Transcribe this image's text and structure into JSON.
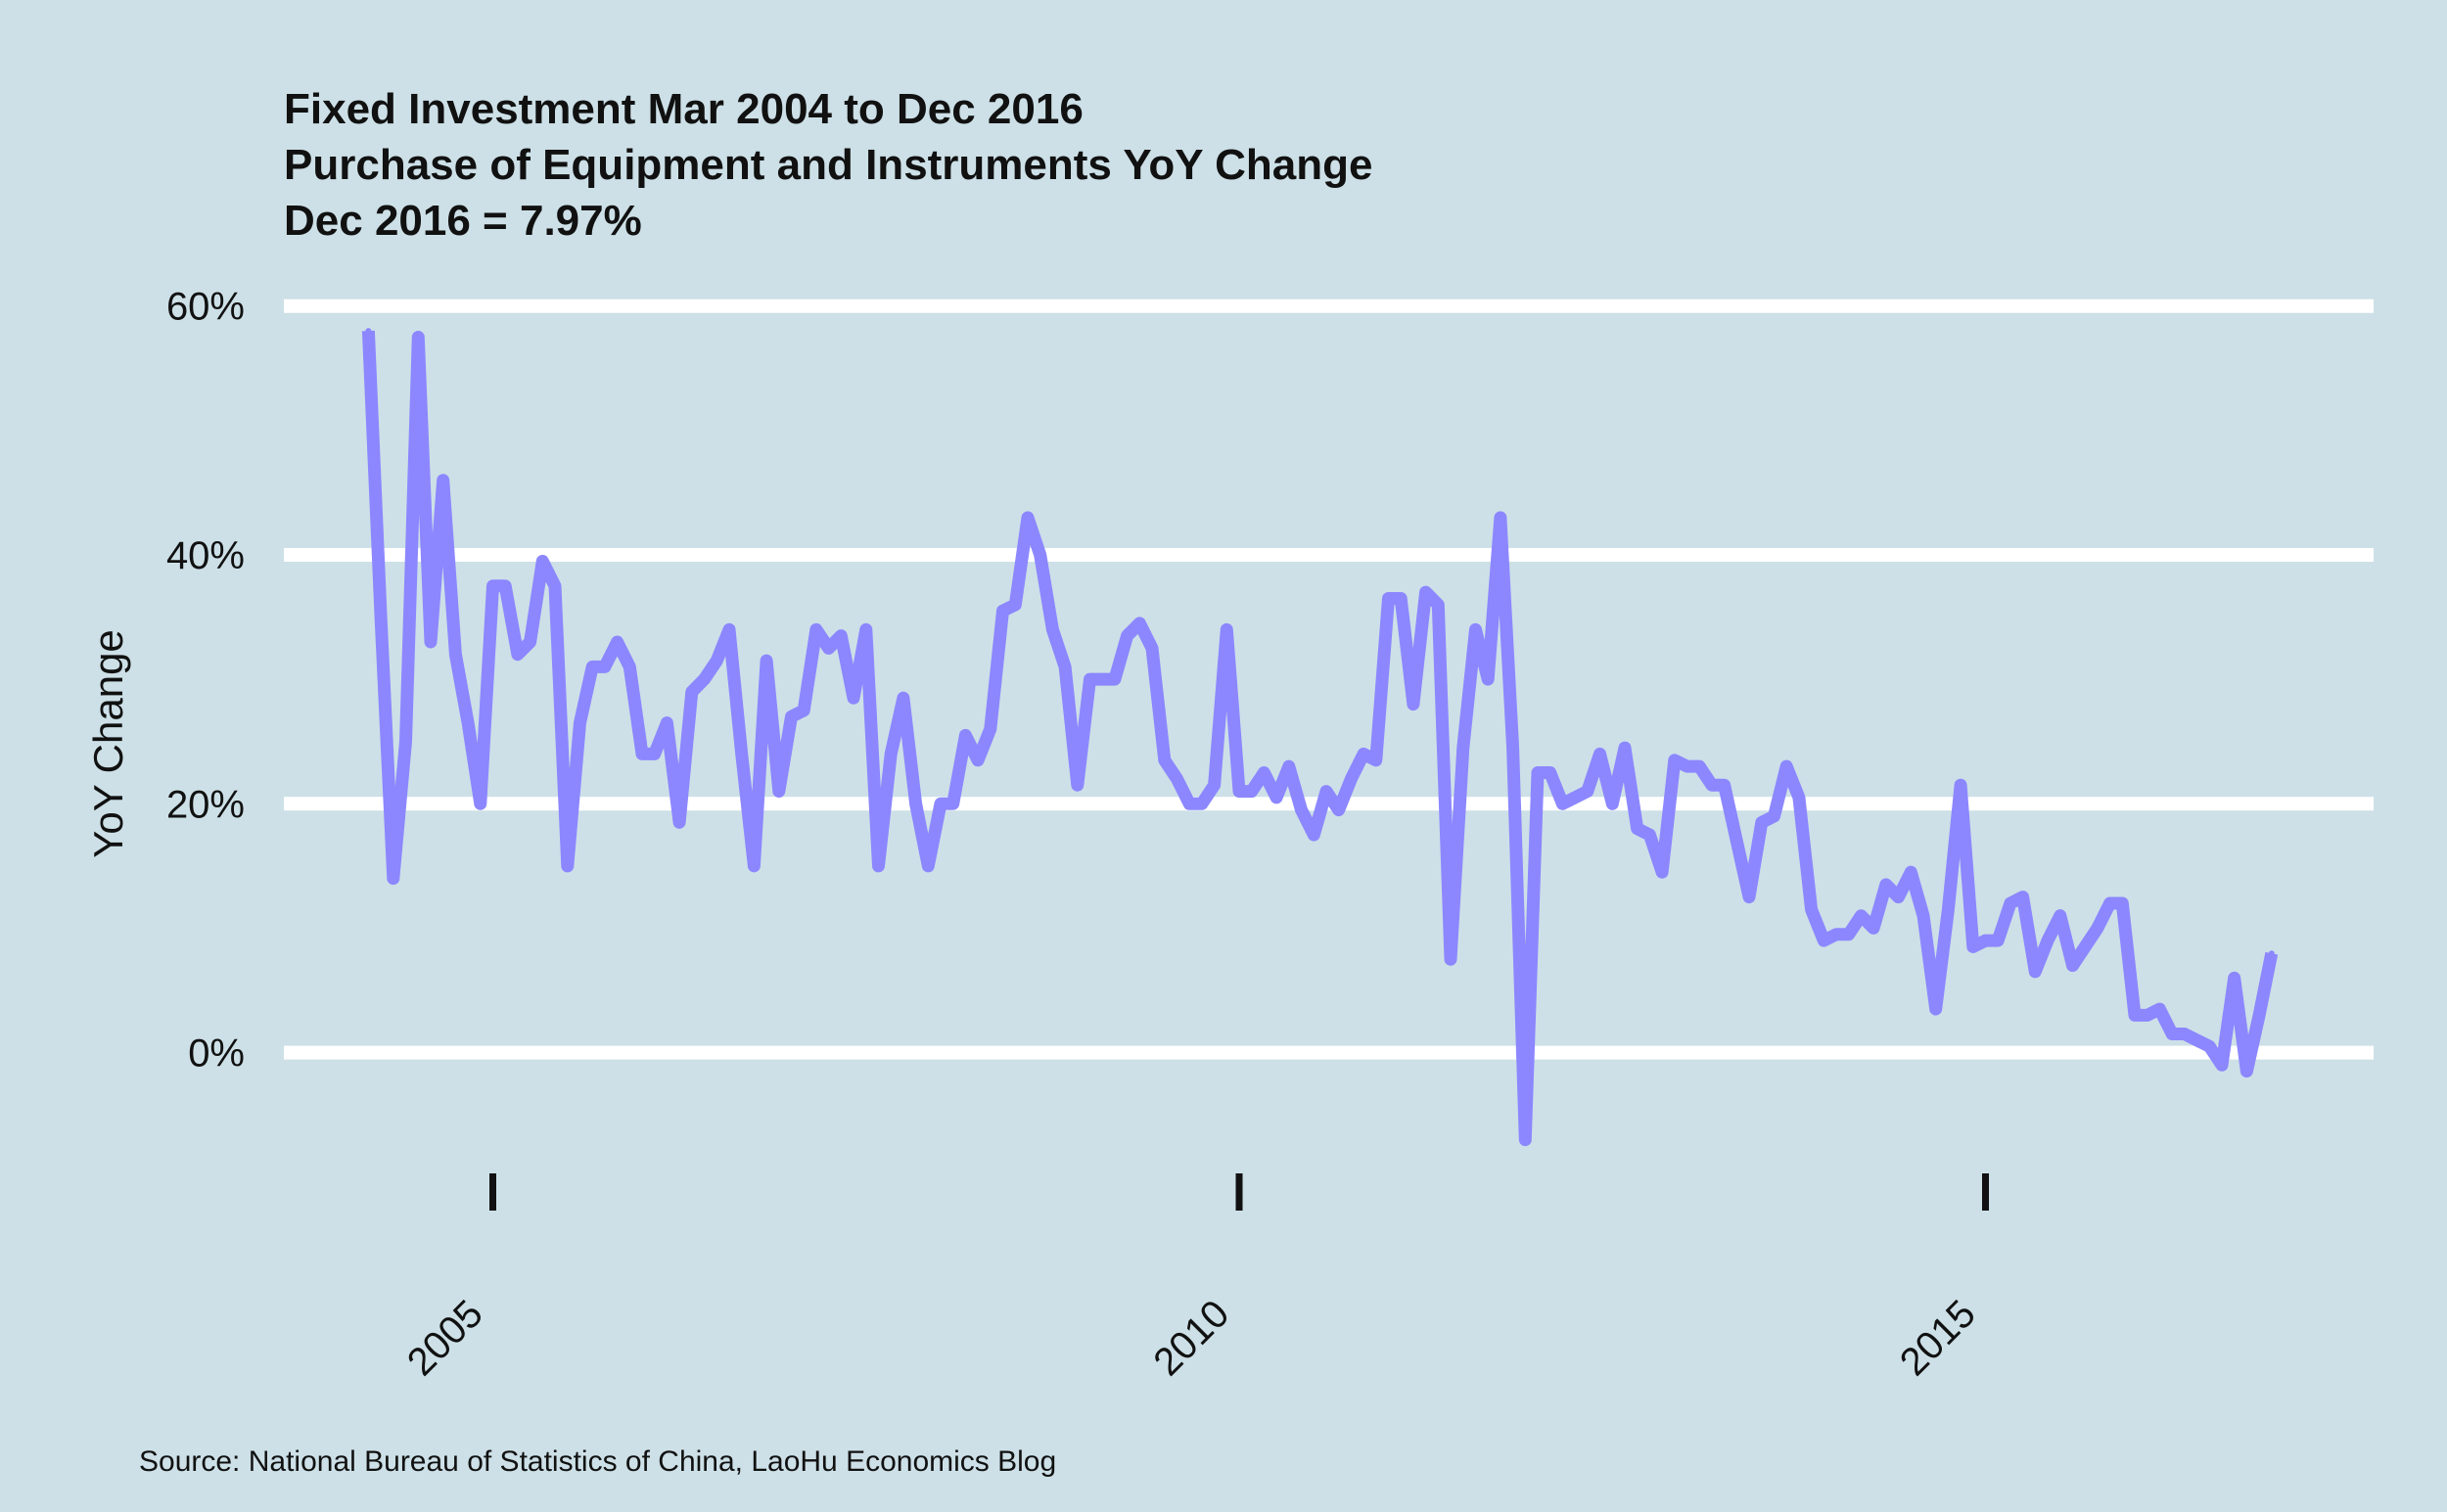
{
  "chart_data": {
    "type": "line",
    "title": [
      "Fixed Investment Mar 2004 to Dec 2016",
      "Purchase of Equipment and Instruments YoY Change",
      "Dec 2016 = 7.97%"
    ],
    "xlabel": "",
    "ylabel": "YoY Change",
    "xlim": [
      2003.6,
      2017.6
    ],
    "ylim": [
      -9,
      61
    ],
    "x_ticks": [
      2005,
      2010,
      2015
    ],
    "x_tick_labels": [
      "2005",
      "2010",
      "2015"
    ],
    "y_ticks": [
      0,
      20,
      40,
      60
    ],
    "y_tick_labels": [
      "0%",
      "20%",
      "40%",
      "60%"
    ],
    "grid": "horizontal",
    "line_color": "#8c87ff",
    "background_color": "#cde0e7",
    "source": "Source: National Bureau of Statistics of China, LaoHu Economics Blog",
    "series": [
      {
        "name": "",
        "points": [
          [
            "2004-03",
            58
          ],
          [
            "2004-04",
            35
          ],
          [
            "2004-05",
            14
          ],
          [
            "2004-06",
            25
          ],
          [
            "2004-07",
            57.5
          ],
          [
            "2004-08",
            33
          ],
          [
            "2004-09",
            46
          ],
          [
            "2004-10",
            32
          ],
          [
            "2004-11",
            26.5
          ],
          [
            "2004-12",
            20
          ],
          [
            "2005-01",
            37.5
          ],
          [
            "2005-02",
            37.5
          ],
          [
            "2005-03",
            32
          ],
          [
            "2005-04",
            33
          ],
          [
            "2005-05",
            39.5
          ],
          [
            "2005-06",
            37.5
          ],
          [
            "2005-07",
            15
          ],
          [
            "2005-08",
            26.5
          ],
          [
            "2005-09",
            31
          ],
          [
            "2005-10",
            31
          ],
          [
            "2005-11",
            33
          ],
          [
            "2005-12",
            31
          ],
          [
            "2006-01",
            24
          ],
          [
            "2006-02",
            24
          ],
          [
            "2006-03",
            26.5
          ],
          [
            "2006-04",
            18.5
          ],
          [
            "2006-05",
            29
          ],
          [
            "2006-06",
            30
          ],
          [
            "2006-07",
            31.5
          ],
          [
            "2006-08",
            34
          ],
          [
            "2006-09",
            24
          ],
          [
            "2006-10",
            15
          ],
          [
            "2006-11",
            31.5
          ],
          [
            "2006-12",
            21
          ],
          [
            "2007-01",
            27
          ],
          [
            "2007-02",
            27.5
          ],
          [
            "2007-03",
            34
          ],
          [
            "2007-04",
            32.5
          ],
          [
            "2007-05",
            33.5
          ],
          [
            "2007-06",
            28.5
          ],
          [
            "2007-07",
            34
          ],
          [
            "2007-08",
            15
          ],
          [
            "2007-09",
            24
          ],
          [
            "2007-10",
            28.5
          ],
          [
            "2007-11",
            20
          ],
          [
            "2007-12",
            15
          ],
          [
            "2008-01",
            20
          ],
          [
            "2008-02",
            20
          ],
          [
            "2008-03",
            25.5
          ],
          [
            "2008-04",
            23.5
          ],
          [
            "2008-05",
            26
          ],
          [
            "2008-06",
            35.5
          ],
          [
            "2008-07",
            36
          ],
          [
            "2008-08",
            43
          ],
          [
            "2008-09",
            40
          ],
          [
            "2008-10",
            34
          ],
          [
            "2008-11",
            31
          ],
          [
            "2008-12",
            21.5
          ],
          [
            "2009-01",
            30
          ],
          [
            "2009-02",
            30
          ],
          [
            "2009-03",
            30
          ],
          [
            "2009-04",
            33.5
          ],
          [
            "2009-05",
            34.5
          ],
          [
            "2009-06",
            32.5
          ],
          [
            "2009-07",
            23.5
          ],
          [
            "2009-08",
            22
          ],
          [
            "2009-09",
            20
          ],
          [
            "2009-10",
            20
          ],
          [
            "2009-11",
            21.5
          ],
          [
            "2009-12",
            34
          ],
          [
            "2010-01",
            21
          ],
          [
            "2010-02",
            21
          ],
          [
            "2010-03",
            22.5
          ],
          [
            "2010-04",
            20.5
          ],
          [
            "2010-05",
            23
          ],
          [
            "2010-06",
            19.5
          ],
          [
            "2010-07",
            17.5
          ],
          [
            "2010-08",
            21
          ],
          [
            "2010-09",
            19.5
          ],
          [
            "2010-10",
            22
          ],
          [
            "2010-11",
            24
          ],
          [
            "2010-12",
            23.5
          ],
          [
            "2011-01",
            36.5
          ],
          [
            "2011-02",
            36.5
          ],
          [
            "2011-03",
            28
          ],
          [
            "2011-04",
            37
          ],
          [
            "2011-05",
            36
          ],
          [
            "2011-06",
            7.5
          ],
          [
            "2011-07",
            24.5
          ],
          [
            "2011-08",
            34
          ],
          [
            "2011-09",
            30
          ],
          [
            "2011-10",
            43
          ],
          [
            "2011-11",
            24.5
          ],
          [
            "2011-12",
            -7
          ],
          [
            "2012-01",
            22.5
          ],
          [
            "2012-02",
            22.5
          ],
          [
            "2012-03",
            20
          ],
          [
            "2012-04",
            20.5
          ],
          [
            "2012-05",
            21
          ],
          [
            "2012-06",
            24
          ],
          [
            "2012-07",
            20
          ],
          [
            "2012-08",
            24.5
          ],
          [
            "2012-09",
            18
          ],
          [
            "2012-10",
            17.5
          ],
          [
            "2012-11",
            14.5
          ],
          [
            "2012-12",
            23.5
          ],
          [
            "2013-01",
            23
          ],
          [
            "2013-02",
            23
          ],
          [
            "2013-03",
            21.5
          ],
          [
            "2013-04",
            21.5
          ],
          [
            "2013-05",
            17
          ],
          [
            "2013-06",
            12.5
          ],
          [
            "2013-07",
            18.5
          ],
          [
            "2013-08",
            19
          ],
          [
            "2013-09",
            23
          ],
          [
            "2013-10",
            20.5
          ],
          [
            "2013-11",
            11.5
          ],
          [
            "2013-12",
            9
          ],
          [
            "2014-01",
            9.5
          ],
          [
            "2014-02",
            9.5
          ],
          [
            "2014-03",
            11
          ],
          [
            "2014-04",
            10
          ],
          [
            "2014-05",
            13.5
          ],
          [
            "2014-06",
            12.5
          ],
          [
            "2014-07",
            14.5
          ],
          [
            "2014-08",
            11
          ],
          [
            "2014-09",
            3.5
          ],
          [
            "2014-10",
            11.5
          ],
          [
            "2014-11",
            21.5
          ],
          [
            "2014-12",
            8.5
          ],
          [
            "2015-01",
            9
          ],
          [
            "2015-02",
            9
          ],
          [
            "2015-03",
            12
          ],
          [
            "2015-04",
            12.5
          ],
          [
            "2015-05",
            6.5
          ],
          [
            "2015-06",
            9
          ],
          [
            "2015-07",
            11
          ],
          [
            "2015-08",
            7
          ],
          [
            "2015-09",
            8.5
          ],
          [
            "2015-10",
            10
          ],
          [
            "2015-11",
            12
          ],
          [
            "2015-12",
            12
          ],
          [
            "2016-01",
            3
          ],
          [
            "2016-02",
            3
          ],
          [
            "2016-03",
            3.5
          ],
          [
            "2016-04",
            1.5
          ],
          [
            "2016-05",
            1.5
          ],
          [
            "2016-06",
            1
          ],
          [
            "2016-07",
            0.5
          ],
          [
            "2016-08",
            -1
          ],
          [
            "2016-09",
            6
          ],
          [
            "2016-10",
            -1.5
          ],
          [
            "2016-11",
            3
          ],
          [
            "2016-12",
            7.97
          ]
        ]
      }
    ]
  }
}
